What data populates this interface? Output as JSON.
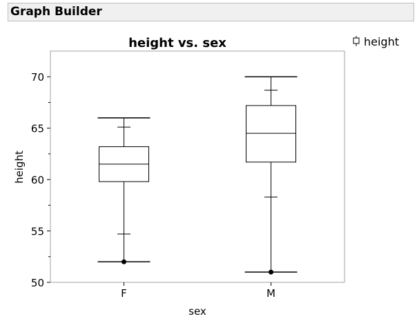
{
  "app": {
    "title": "Graph Builder"
  },
  "chart_data": {
    "type": "box",
    "title": "height vs. sex",
    "xlabel": "sex",
    "ylabel": "height",
    "categories": [
      "F",
      "M"
    ],
    "ylim": [
      50,
      72.5
    ],
    "yticks": [
      50,
      55,
      60,
      65,
      70
    ],
    "legend": {
      "placement": "top-right",
      "entries": [
        {
          "label": "height",
          "symbol": "box-icon"
        }
      ]
    },
    "grid": false,
    "boxes": [
      {
        "category": "F",
        "min": 52,
        "q1": 59.8,
        "median": 61.5,
        "q3": 63.2,
        "max": 66,
        "lower_quantile_tick": 54.7,
        "upper_quantile_tick": 65.1,
        "outliers": [
          52
        ]
      },
      {
        "category": "M",
        "min": 51,
        "q1": 61.7,
        "median": 64.5,
        "q3": 67.2,
        "max": 70,
        "lower_quantile_tick": 58.3,
        "upper_quantile_tick": 68.7,
        "outliers": [
          51
        ]
      }
    ],
    "colors": {
      "frame": "#a0a0a0",
      "box": "#000000",
      "outlier": "#000000"
    }
  }
}
